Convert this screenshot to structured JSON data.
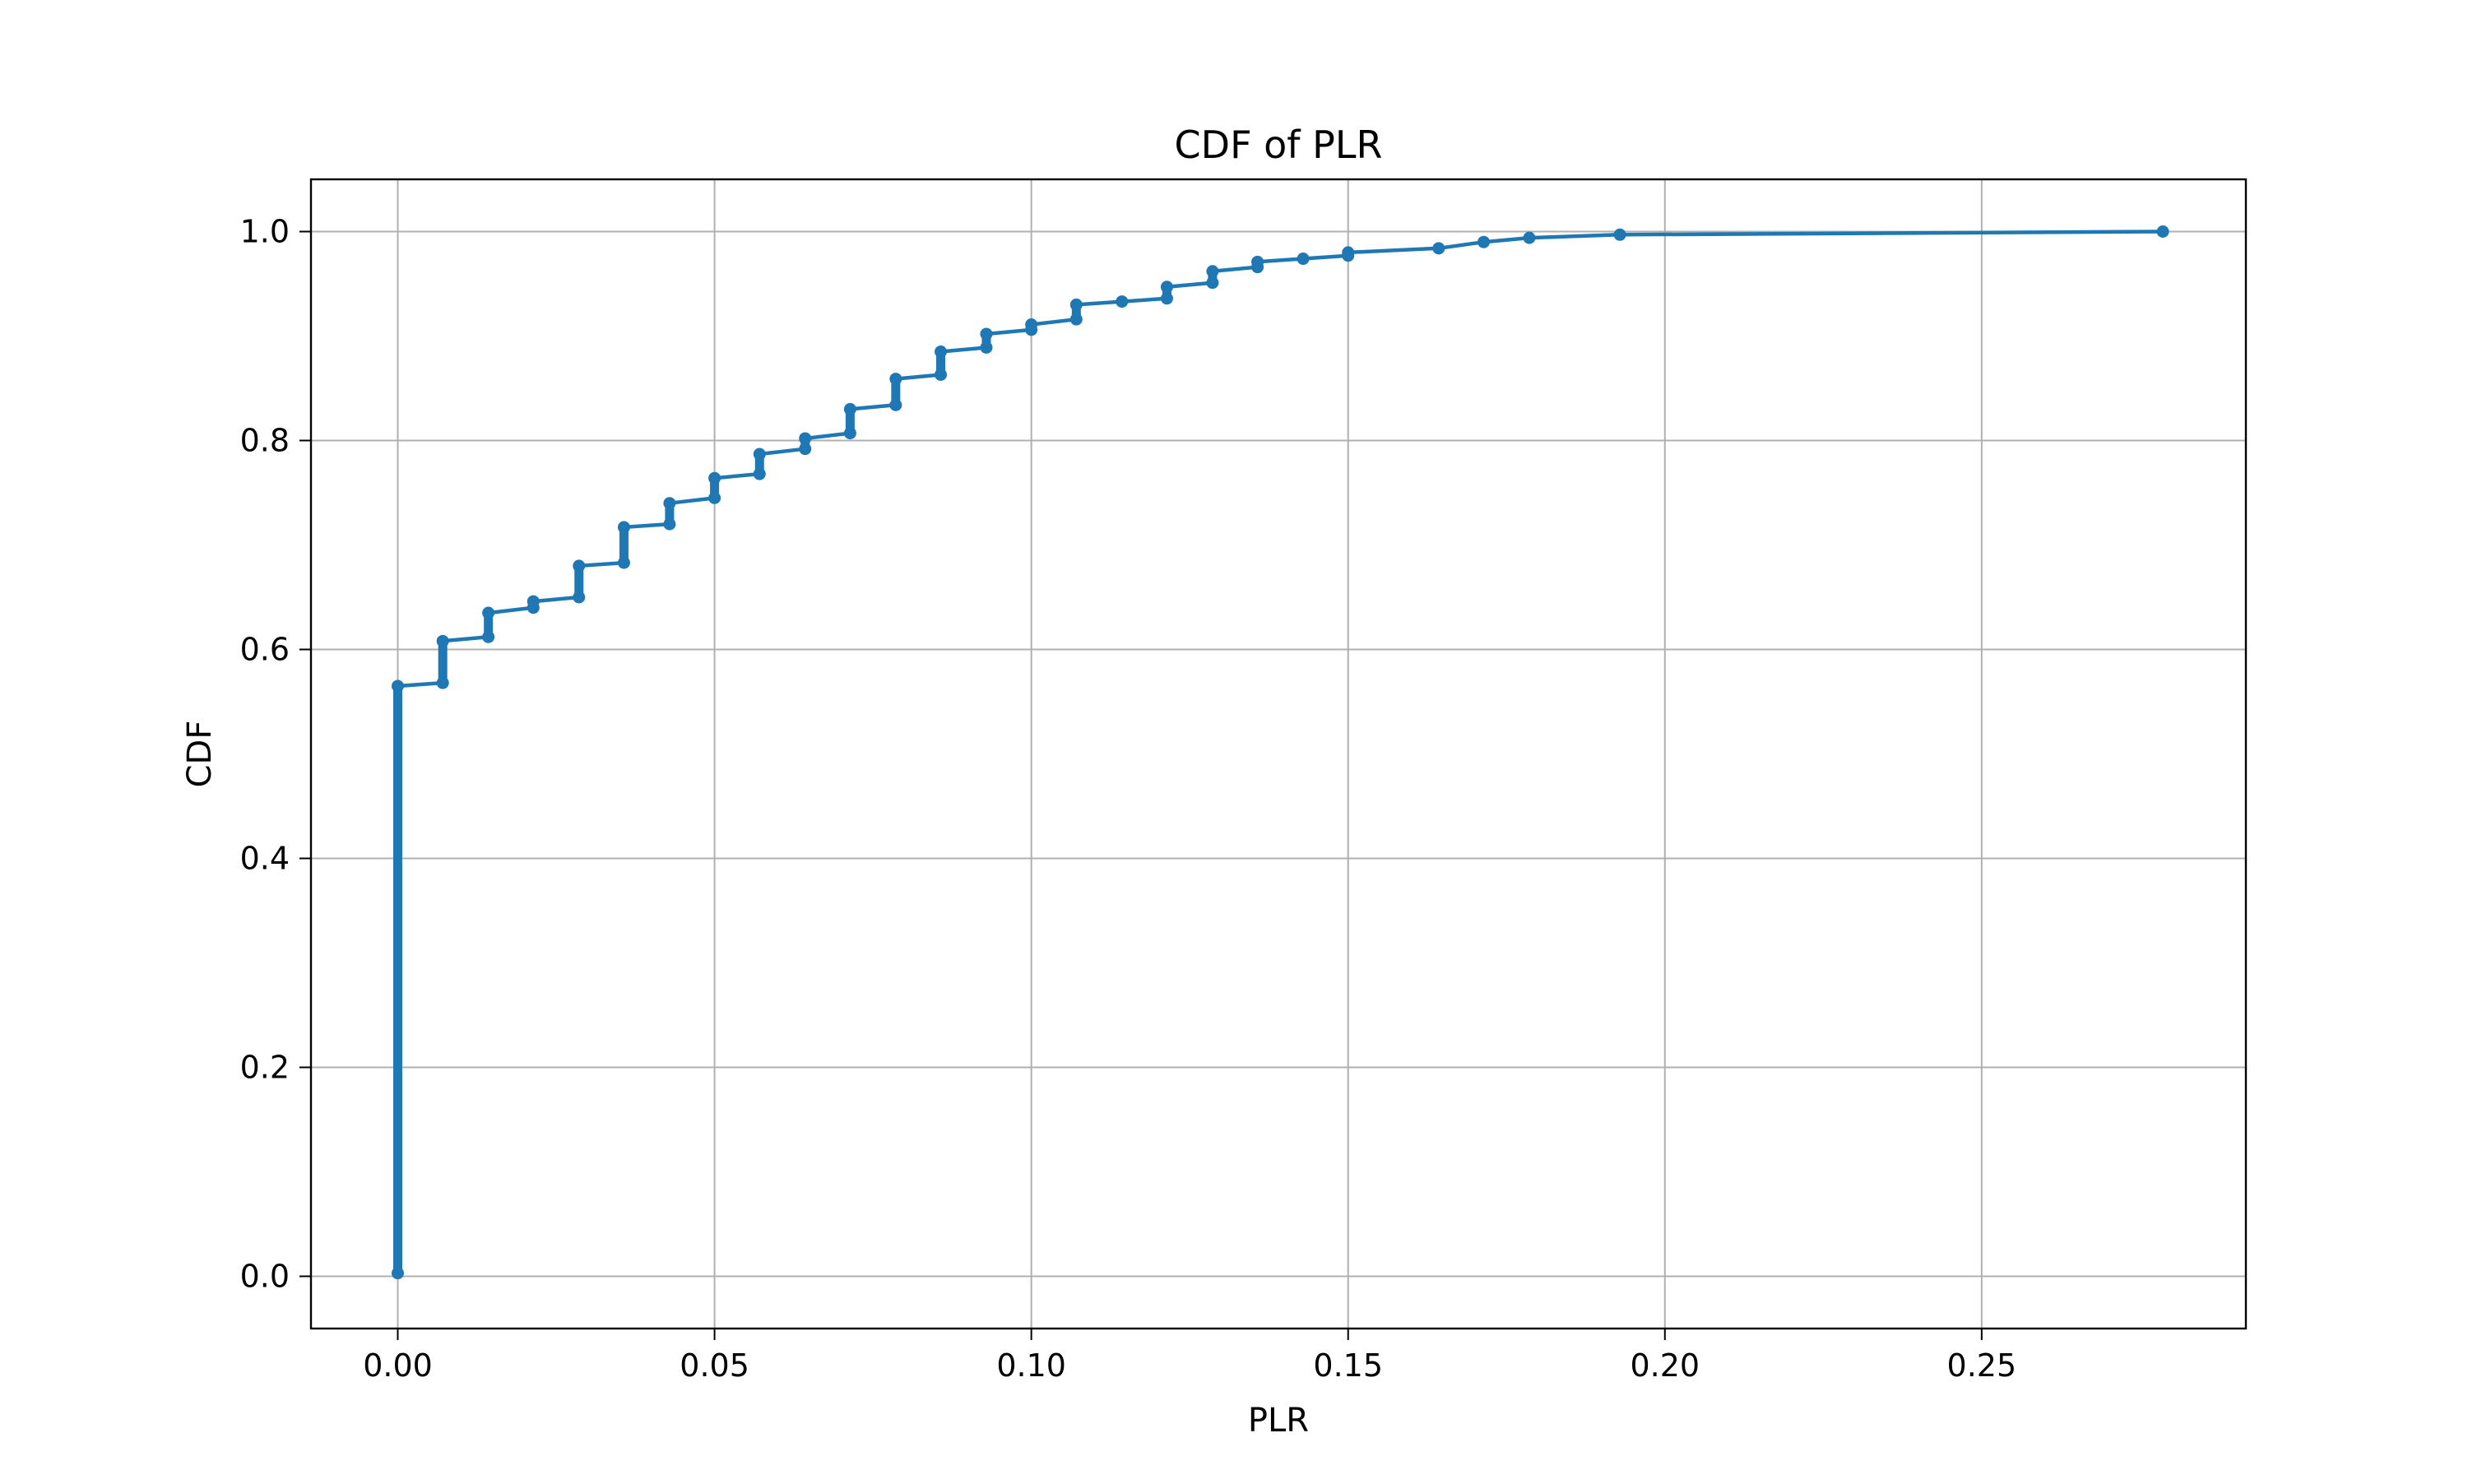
{
  "chart_data": {
    "type": "line",
    "title": "CDF of PLR",
    "xlabel": "PLR",
    "ylabel": "CDF",
    "xlim": [
      -0.0137,
      0.2917
    ],
    "ylim": [
      -0.05,
      1.05
    ],
    "xticks": [
      0.0,
      0.05,
      0.1,
      0.15,
      0.2,
      0.25
    ],
    "xtick_labels": [
      "0.00",
      "0.05",
      "0.10",
      "0.15",
      "0.20",
      "0.25"
    ],
    "yticks": [
      0.0,
      0.2,
      0.4,
      0.6,
      0.8,
      1.0
    ],
    "ytick_labels": [
      "0.0",
      "0.2",
      "0.4",
      "0.6",
      "0.8",
      "1.0"
    ],
    "grid": true,
    "legend": "none",
    "color": "#1f77b4",
    "marker": "o",
    "series": [
      {
        "x": [
          0.0,
          0.0,
          0.0071,
          0.0071,
          0.0143,
          0.0143,
          0.0214,
          0.0214,
          0.0286,
          0.0286,
          0.0357,
          0.0357,
          0.0429,
          0.0429,
          0.05,
          0.05,
          0.0571,
          0.0571,
          0.0643,
          0.0643,
          0.0714,
          0.0714,
          0.0786,
          0.0786,
          0.0857,
          0.0857,
          0.0929,
          0.0929,
          0.1,
          0.1,
          0.1071,
          0.1071,
          0.1143,
          0.1214,
          0.1214,
          0.1286,
          0.1286,
          0.1357,
          0.1357,
          0.1429,
          0.15,
          0.15,
          0.1643,
          0.1714,
          0.1786,
          0.1929,
          0.2786
        ],
        "y": [
          0.003,
          0.565,
          0.568,
          0.608,
          0.612,
          0.635,
          0.64,
          0.646,
          0.65,
          0.68,
          0.683,
          0.717,
          0.72,
          0.74,
          0.745,
          0.764,
          0.768,
          0.787,
          0.792,
          0.802,
          0.807,
          0.83,
          0.834,
          0.859,
          0.863,
          0.885,
          0.889,
          0.902,
          0.906,
          0.911,
          0.916,
          0.93,
          0.933,
          0.936,
          0.947,
          0.951,
          0.962,
          0.966,
          0.971,
          0.974,
          0.977,
          0.98,
          0.984,
          0.99,
          0.994,
          0.997,
          1.0
        ]
      }
    ]
  }
}
